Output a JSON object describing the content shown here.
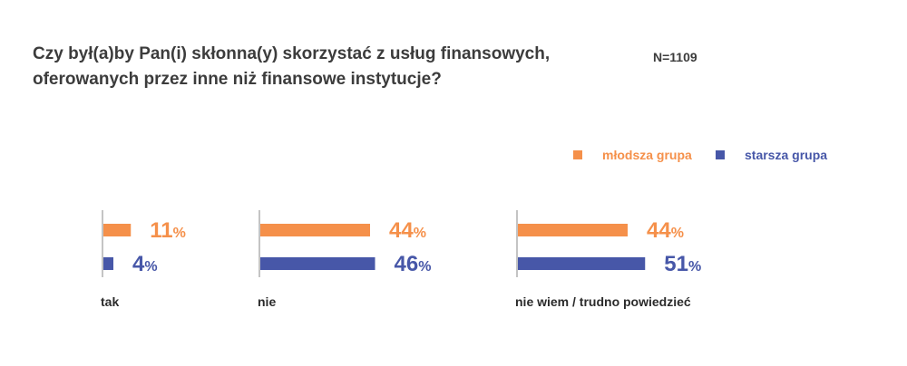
{
  "header": {
    "question_line1": "Czy był(a)by Pan(i) skłonna(y) skorzystać z usług finansowych,",
    "question_line2": "oferowanych przez inne niż finansowe instytucje?",
    "sample": "N=1109"
  },
  "colors": {
    "mlodsza": "#f5904a",
    "starsza": "#4757a8"
  },
  "chart_data": {
    "type": "bar",
    "orientation": "horizontal",
    "categories": [
      "tak",
      "nie",
      "nie wiem / trudno powiedzieć"
    ],
    "series": [
      {
        "name": "młodsza grupa",
        "values": [
          11,
          44,
          44
        ],
        "color": "#f5904a"
      },
      {
        "name": "starsza grupa",
        "values": [
          4,
          46,
          51
        ],
        "color": "#4757a8"
      }
    ],
    "unit": "%",
    "legend_position": "top-right",
    "grid": false
  }
}
